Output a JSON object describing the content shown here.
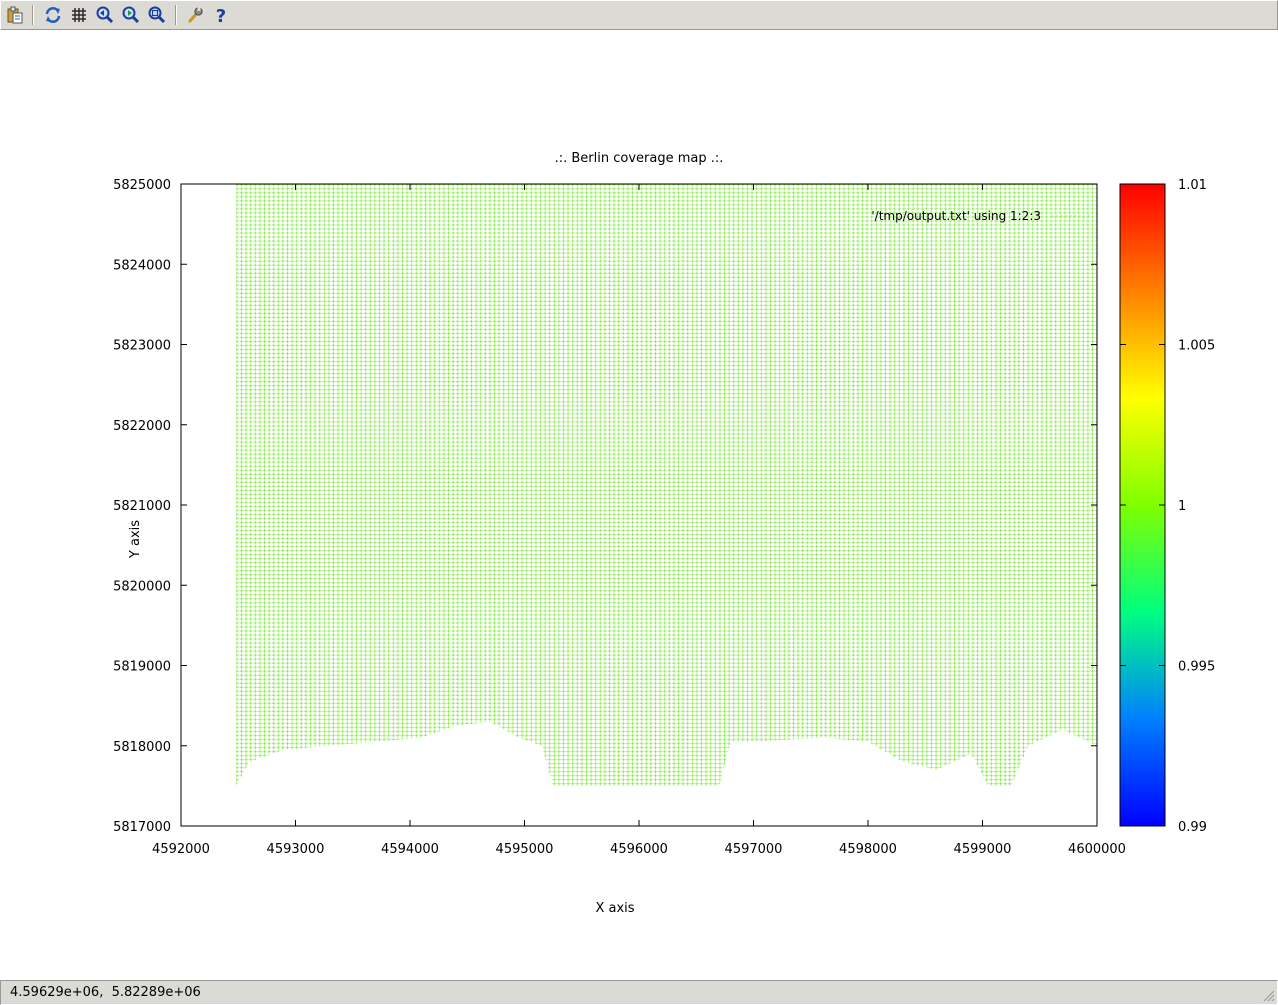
{
  "toolbar": {
    "buttons": [
      {
        "name": "copy-to-clipboard",
        "icon": "clipboard-icon"
      },
      {
        "name": "replot",
        "icon": "refresh-icon"
      },
      {
        "name": "toggle-grid",
        "icon": "grid-icon"
      },
      {
        "name": "previous-zoom",
        "icon": "zoom-back-icon"
      },
      {
        "name": "next-zoom",
        "icon": "zoom-forward-icon"
      },
      {
        "name": "unzoom",
        "icon": "zoom-reset-icon"
      },
      {
        "name": "options",
        "icon": "wrench-icon"
      },
      {
        "name": "help",
        "icon": "help-icon"
      }
    ]
  },
  "status": {
    "coords": "4.59629e+06,  5.82289e+06"
  },
  "chart_data": {
    "type": "scatter",
    "title": ".:. Berlin coverage map .:.",
    "xlabel": "X axis",
    "ylabel": "Y axis",
    "xlim": [
      4592000,
      4600000
    ],
    "ylim": [
      5817000,
      5825000
    ],
    "xticks": [
      4592000,
      4593000,
      4594000,
      4595000,
      4596000,
      4597000,
      4598000,
      4599000,
      4600000
    ],
    "yticks": [
      5817000,
      5818000,
      5819000,
      5820000,
      5821000,
      5822000,
      5823000,
      5824000,
      5825000
    ],
    "x_tick_labels": [
      "4592000",
      "4593000",
      "4594000",
      "4595000",
      "4596000",
      "4597000",
      "4598000",
      "4599000",
      "4600000"
    ],
    "y_tick_labels": [
      "5817000",
      "5818000",
      "5819000",
      "5820000",
      "5821000",
      "5822000",
      "5823000",
      "5824000",
      "5825000"
    ],
    "legend": {
      "label": "'/tmp/output.txt' using 1:2:3",
      "position": "top-right"
    },
    "grid": false,
    "point_style": "plus",
    "point_color": "#88e94a",
    "colorbar": {
      "range": [
        0.99,
        1.01
      ],
      "ticks": [
        0.99,
        0.995,
        1,
        1.005,
        1.01
      ],
      "tick_labels": [
        "0.99",
        "0.995",
        "1",
        "1.005",
        "1.01"
      ],
      "palette": [
        "#0000ff",
        "#0080ff",
        "#00ff80",
        "#80ff00",
        "#ffff00",
        "#ff8000",
        "#ff0000"
      ]
    },
    "series": [
      {
        "value": 1,
        "coverage": {
          "x_range": [
            4592480,
            4600000
          ],
          "y_range": [
            5817480,
            5825000
          ],
          "grid_step": 40,
          "bottom_edge": [
            [
              4592480,
              5817500
            ],
            [
              4592600,
              5817800
            ],
            [
              4592900,
              5817950
            ],
            [
              4593300,
              5818000
            ],
            [
              4593700,
              5818050
            ],
            [
              4594100,
              5818100
            ],
            [
              4594400,
              5818250
            ],
            [
              4594700,
              5818300
            ],
            [
              4594950,
              5818100
            ],
            [
              4595150,
              5818000
            ],
            [
              4595250,
              5817500
            ],
            [
              4596700,
              5817500
            ],
            [
              4596800,
              5818050
            ],
            [
              4597000,
              5818050
            ],
            [
              4597600,
              5818100
            ],
            [
              4598000,
              5818050
            ],
            [
              4598300,
              5817800
            ],
            [
              4598600,
              5817700
            ],
            [
              4598900,
              5817900
            ],
            [
              4599050,
              5817500
            ],
            [
              4599250,
              5817500
            ],
            [
              4599400,
              5818000
            ],
            [
              4599700,
              5818200
            ],
            [
              4600000,
              5818000
            ]
          ]
        }
      }
    ]
  }
}
